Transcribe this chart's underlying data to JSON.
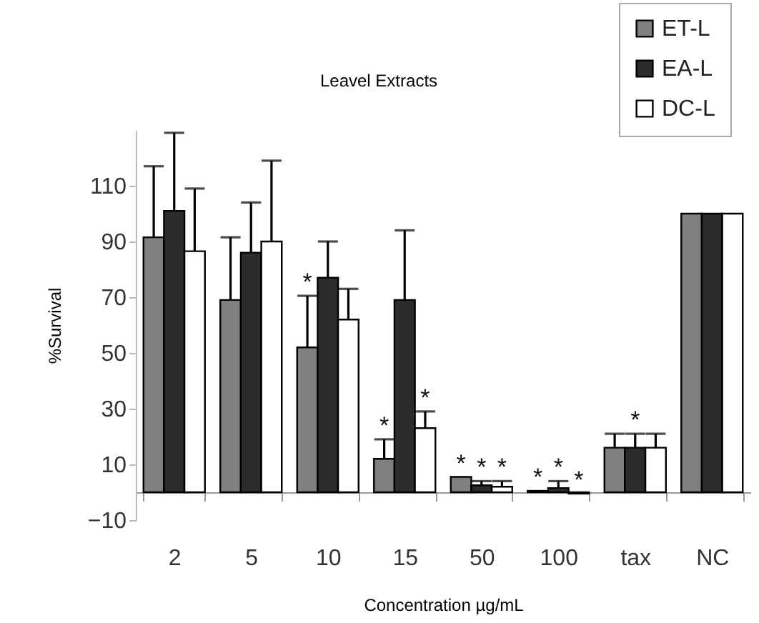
{
  "chart_data": {
    "type": "bar",
    "title": "Leavel Extracts",
    "xlabel": "Concentration µg/mL",
    "ylabel": "%Survival",
    "categories": [
      "2",
      "5",
      "10",
      "15",
      "50",
      "100",
      "tax",
      "NC"
    ],
    "series": [
      {
        "name": "ET-L",
        "color": "#808080",
        "values": [
          91.5,
          69,
          52,
          12,
          5.5,
          0.5,
          16,
          100
        ],
        "errors": [
          25.5,
          22.5,
          18.5,
          7,
          null,
          null,
          5,
          null
        ],
        "value_labels": [
          null,
          null,
          "*",
          "*",
          "*",
          "*",
          null,
          null
        ]
      },
      {
        "name": "EA-L",
        "color": "#2b2b2b",
        "values": [
          101,
          86,
          77,
          69,
          2.5,
          1.5,
          16,
          100
        ],
        "errors": [
          28,
          18,
          13,
          25,
          1.5,
          2.5,
          5,
          null
        ],
        "value_labels": [
          null,
          null,
          null,
          null,
          "*",
          "*",
          "*",
          null
        ]
      },
      {
        "name": "DC-L",
        "color": "#ffffff",
        "values": [
          86.5,
          90,
          62,
          23,
          2,
          -0.5,
          16,
          100
        ],
        "errors": [
          22.5,
          29,
          11,
          6,
          2,
          null,
          5,
          null
        ],
        "value_labels": [
          null,
          null,
          null,
          "*",
          "*",
          "*",
          null,
          null
        ]
      }
    ],
    "ylim": [
      -10,
      130
    ],
    "yticks": [
      -10,
      10,
      30,
      50,
      70,
      90,
      110
    ],
    "grid": false,
    "legend": "top right"
  }
}
